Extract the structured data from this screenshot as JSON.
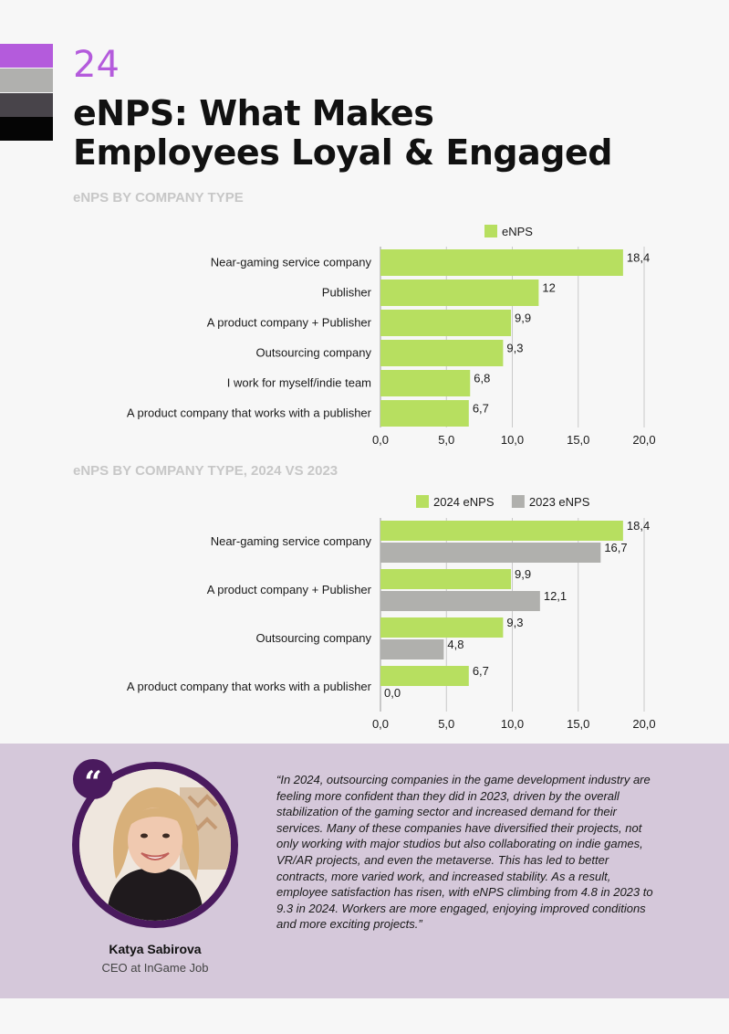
{
  "page": {
    "number": "24",
    "title_line1": "eNPS: What Makes",
    "title_line2": "Employees Loyal & Engaged",
    "swatch_colors": [
      "#b45bdc",
      "#b0b0ae",
      "#48444a",
      "#050505"
    ]
  },
  "colors": {
    "series_2024": "#b7df60",
    "series_2023": "#b0b0ad",
    "gridline": "#c9c9c9",
    "quote_panel": "#d5c8da",
    "accent_purple": "#4a1a5e"
  },
  "chart_data": [
    {
      "type": "bar",
      "orientation": "horizontal",
      "title": "eNPS BY COMPANY TYPE",
      "categories": [
        "Near-gaming service company",
        "Publisher",
        "A product company + Publisher",
        "Outsourcing company",
        "I work for myself/indie team",
        "A product company that works with a publisher"
      ],
      "series": [
        {
          "name": "eNPS",
          "values": [
            18.4,
            12,
            9.9,
            9.3,
            6.8,
            6.7
          ],
          "labels": [
            "18,4",
            "12",
            "9,9",
            "9,3",
            "6,8",
            "6,7"
          ]
        }
      ],
      "xlim": [
        0,
        20
      ],
      "xticks": [
        "0,0",
        "5,0",
        "10,0",
        "15,0",
        "20,0"
      ],
      "grid": true,
      "legend": "top"
    },
    {
      "type": "bar",
      "orientation": "horizontal",
      "title": "eNPS BY COMPANY TYPE, 2024 VS 2023",
      "categories": [
        "Near-gaming service company",
        "A product company + Publisher",
        "Outsourcing company",
        "A product company that works with a publisher"
      ],
      "series": [
        {
          "name": "2024 eNPS",
          "values": [
            18.4,
            9.9,
            9.3,
            6.7
          ],
          "labels": [
            "18,4",
            "9,9",
            "9,3",
            "6,7"
          ]
        },
        {
          "name": "2023 eNPS",
          "values": [
            16.7,
            12.1,
            4.8,
            0.0
          ],
          "labels": [
            "16,7",
            "12,1",
            "4,8",
            "0,0"
          ]
        }
      ],
      "xlim": [
        0,
        20
      ],
      "xticks": [
        "0,0",
        "5,0",
        "10,0",
        "15,0",
        "20,0"
      ],
      "grid": true,
      "legend": "top"
    }
  ],
  "quote": {
    "badge": "“",
    "name": "Katya Sabirova",
    "role": "CEO at InGame Job",
    "text": "“In 2024, outsourcing companies in the game development industry are feeling more confident than they did in 2023, driven by the overall stabilization of the gaming sector and increased demand for their services. Many of these companies have diversified their projects, not only working with major studios but also collaborating on indie games, VR/AR projects, and even the metaverse. This has led to better contracts, more varied work, and increased stability. As a result, employee satisfaction has risen, with eNPS climbing from 4.8 in 2023 to 9.3 in 2024. Workers are more engaged, enjoying improved conditions and more exciting projects.”"
  }
}
